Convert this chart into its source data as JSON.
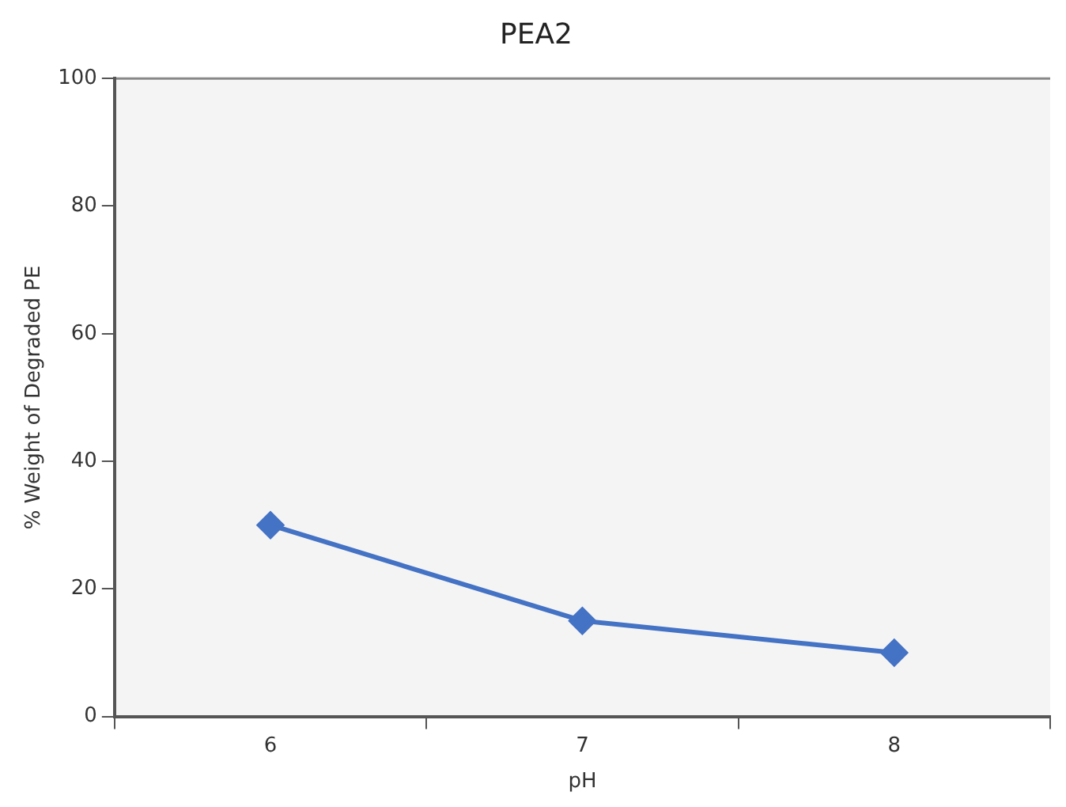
{
  "chart_data": {
    "type": "line",
    "title": "PEA2",
    "xlabel": "pH",
    "ylabel": "% Weight of Degraded PE",
    "categories": [
      "6",
      "7",
      "8"
    ],
    "series": [
      {
        "color": "#4472c4",
        "values": [
          30,
          15,
          10
        ]
      }
    ],
    "ylim": [
      0,
      100
    ],
    "yticks": [
      0,
      20,
      40,
      60,
      80,
      100
    ],
    "grid": false,
    "legend": false,
    "marker": "diamond",
    "line_style": "solid"
  }
}
